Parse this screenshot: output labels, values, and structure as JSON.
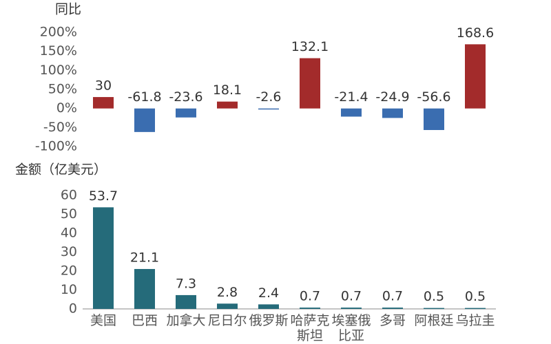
{
  "chart_data": [
    {
      "type": "bar",
      "y_label": "同比",
      "values": [
        30,
        -61.8,
        -23.6,
        18.1,
        -2.6,
        132.1,
        -21.4,
        -24.9,
        -56.6,
        168.6
      ],
      "positive_color": "#a32b2b",
      "negative_color": "#3a6db0",
      "ylim": [
        -100,
        200
      ],
      "yticks": [
        {
          "value": -100,
          "label": "-100%"
        },
        {
          "value": -50,
          "label": "-50%"
        },
        {
          "value": 0,
          "label": "0%"
        },
        {
          "value": 50,
          "label": "50%"
        },
        {
          "value": 100,
          "label": "100%"
        },
        {
          "value": 150,
          "label": "150%"
        },
        {
          "value": 200,
          "label": "200%"
        }
      ]
    },
    {
      "type": "bar",
      "y_label": "金额（亿美元）",
      "categories": [
        "美国",
        "巴西",
        "加拿大",
        "尼日尔",
        "俄罗斯",
        "哈萨克斯坦",
        "埃塞俄比亚",
        "多哥",
        "阿根廷",
        "乌拉圭"
      ],
      "values": [
        53.7,
        21.1,
        7.3,
        2.8,
        2.4,
        0.7,
        0.7,
        0.7,
        0.5,
        0.5
      ],
      "color": "#256b7a",
      "ylim": [
        0,
        60
      ],
      "yticks": [
        0,
        10,
        20,
        30,
        40,
        50,
        60
      ]
    }
  ]
}
